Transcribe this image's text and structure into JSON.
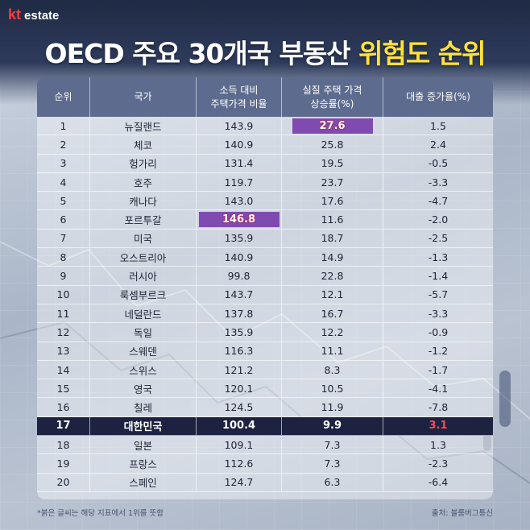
{
  "logo": {
    "mark": "kt",
    "text": "estate"
  },
  "title": {
    "main": "OECD 주요 30개국 부동산 ",
    "highlight": "위험도 순위"
  },
  "table": {
    "headers": [
      "순위",
      "국가",
      "소득 대비\n주택가격 비율",
      "실질 주택 가격\n상승률(%)",
      "대출 증가율(%)"
    ],
    "rows": [
      {
        "rank": "1",
        "country": "뉴질랜드",
        "ratio": "143.9",
        "growth": "27.6",
        "loan": "1.5"
      },
      {
        "rank": "2",
        "country": "체코",
        "ratio": "140.9",
        "growth": "25.8",
        "loan": "2.4"
      },
      {
        "rank": "3",
        "country": "헝가리",
        "ratio": "131.4",
        "growth": "19.5",
        "loan": "-0.5"
      },
      {
        "rank": "4",
        "country": "호주",
        "ratio": "119.7",
        "growth": "23.7",
        "loan": "-3.3"
      },
      {
        "rank": "5",
        "country": "캐나다",
        "ratio": "143.0",
        "growth": "17.6",
        "loan": "-4.7"
      },
      {
        "rank": "6",
        "country": "포르투갈",
        "ratio": "146.8",
        "growth": "11.6",
        "loan": "-2.0"
      },
      {
        "rank": "7",
        "country": "미국",
        "ratio": "135.9",
        "growth": "18.7",
        "loan": "-2.5"
      },
      {
        "rank": "8",
        "country": "오스트리아",
        "ratio": "140.9",
        "growth": "14.9",
        "loan": "-1.3"
      },
      {
        "rank": "9",
        "country": "러시아",
        "ratio": "99.8",
        "growth": "22.8",
        "loan": "-1.4"
      },
      {
        "rank": "10",
        "country": "룩셈부르크",
        "ratio": "143.7",
        "growth": "12.1",
        "loan": "-5.7"
      },
      {
        "rank": "11",
        "country": "네덜란드",
        "ratio": "137.8",
        "growth": "16.7",
        "loan": "-3.3"
      },
      {
        "rank": "12",
        "country": "독일",
        "ratio": "135.9",
        "growth": "12.2",
        "loan": "-0.9"
      },
      {
        "rank": "13",
        "country": "스웨덴",
        "ratio": "116.3",
        "growth": "11.1",
        "loan": "-1.2"
      },
      {
        "rank": "14",
        "country": "스위스",
        "ratio": "121.2",
        "growth": "8.3",
        "loan": "-1.7"
      },
      {
        "rank": "15",
        "country": "영국",
        "ratio": "120.1",
        "growth": "10.5",
        "loan": "-4.1"
      },
      {
        "rank": "16",
        "country": "칠레",
        "ratio": "124.5",
        "growth": "11.9",
        "loan": "-7.8"
      },
      {
        "rank": "17",
        "country": "대한민국",
        "ratio": "100.4",
        "growth": "9.9",
        "loan": "3.1"
      },
      {
        "rank": "18",
        "country": "일본",
        "ratio": "109.1",
        "growth": "7.3",
        "loan": "1.3"
      },
      {
        "rank": "19",
        "country": "프랑스",
        "ratio": "112.6",
        "growth": "7.3",
        "loan": "-2.3"
      },
      {
        "rank": "20",
        "country": "스페인",
        "ratio": "124.7",
        "growth": "6.3",
        "loan": "-6.4"
      }
    ],
    "highlighted_row_rank": "17",
    "top_ratio_rank": "6",
    "top_growth_rank": "1",
    "top_loan_rank": "17"
  },
  "footnote": "*붉은 글씨는 해당 지표에서 1위를 뜻함",
  "source": "출처: 블룸버그통신",
  "colors": {
    "header_bg": "#5d6b8e",
    "highlight_row_bg": "#1c2240",
    "badge_bg": "#7f4bb0",
    "top_value_red": "#ff4a5a",
    "title_highlight": "#ffe23a"
  }
}
